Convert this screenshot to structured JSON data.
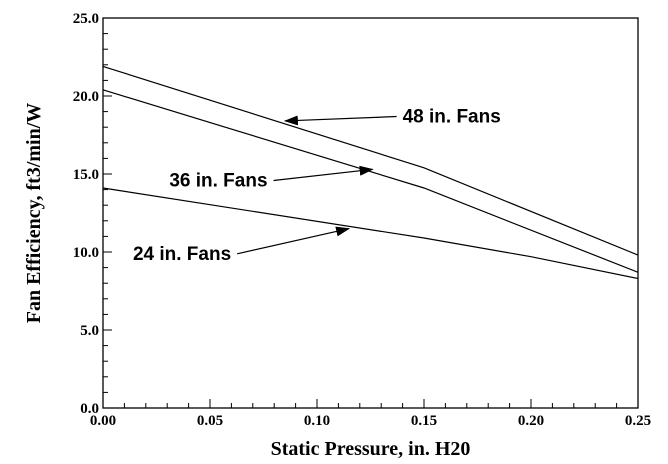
{
  "chart_data": {
    "type": "line",
    "xlabel": "Static Pressure, in. H20",
    "ylabel": "Fan Efficiency, ft3/min/W",
    "xlim": [
      0.0,
      0.25
    ],
    "ylim": [
      0.0,
      25.0
    ],
    "x_ticks": [
      "0.00",
      "0.05",
      "0.10",
      "0.15",
      "0.20",
      "0.25"
    ],
    "y_ticks": [
      "0.0",
      "5.0",
      "10.0",
      "15.0",
      "20.0",
      "25.0"
    ],
    "grid": false,
    "legend": "none",
    "series": [
      {
        "name": "48 in. Fans",
        "x": [
          0.0,
          0.15,
          0.25
        ],
        "y": [
          21.9,
          15.4,
          9.8
        ]
      },
      {
        "name": "36 in. Fans",
        "x": [
          0.0,
          0.15,
          0.25
        ],
        "y": [
          20.4,
          14.1,
          8.7
        ]
      },
      {
        "name": "24 in. Fans",
        "x": [
          0.0,
          0.15,
          0.2,
          0.25
        ],
        "y": [
          14.1,
          10.9,
          9.7,
          8.3
        ]
      }
    ],
    "annotations": [
      {
        "text": "48 in. Fans",
        "series": 0,
        "label_at": [
          0.14,
          18.3
        ],
        "arrow_to": [
          0.085,
          18.4
        ]
      },
      {
        "text": "36 in. Fans",
        "series": 1,
        "label_at": [
          0.031,
          14.2
        ],
        "arrow_to": [
          0.126,
          15.3
        ]
      },
      {
        "text": "24 in. Fans",
        "series": 2,
        "label_at": [
          0.014,
          9.5
        ],
        "arrow_to": [
          0.115,
          11.5
        ]
      }
    ]
  }
}
